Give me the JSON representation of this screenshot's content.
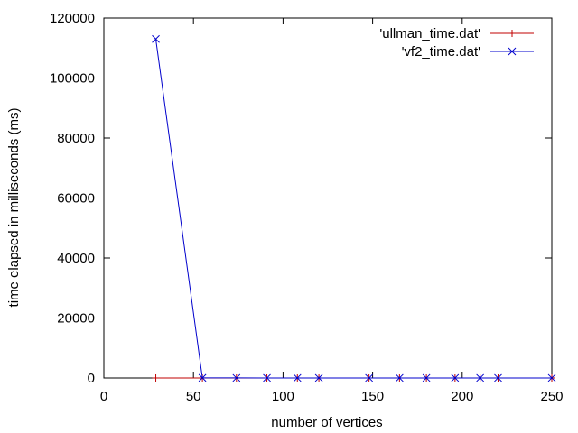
{
  "chart_data": {
    "type": "line",
    "xlabel": "number of vertices",
    "ylabel": "time elapsed in milliseconds (ms)",
    "xlim": [
      0,
      250
    ],
    "ylim": [
      0,
      120000
    ],
    "x_ticks": [
      0,
      50,
      100,
      150,
      200,
      250
    ],
    "y_ticks": [
      0,
      20000,
      40000,
      60000,
      80000,
      100000,
      120000
    ],
    "x_tick_labels": [
      "0",
      "50",
      "100",
      "150",
      "200",
      "250"
    ],
    "y_tick_labels": [
      "0",
      "20000",
      "40000",
      "60000",
      "80000",
      "100000",
      "120000"
    ],
    "grid": false,
    "legend_position": "top-right",
    "series": [
      {
        "name": "'ullman_time.dat'",
        "color": "#c00000",
        "marker": "plus",
        "x": [
          29,
          55,
          74,
          91,
          108,
          120,
          148,
          165,
          180,
          196,
          210,
          220,
          250
        ],
        "y": [
          5,
          5,
          5,
          5,
          5,
          5,
          5,
          5,
          5,
          5,
          5,
          5,
          5
        ]
      },
      {
        "name": "'vf2_time.dat'",
        "color": "#0000cc",
        "marker": "cross",
        "x": [
          29,
          55,
          74,
          91,
          108,
          120,
          148,
          165,
          180,
          196,
          210,
          220,
          250
        ],
        "y": [
          113000,
          30,
          20,
          15,
          15,
          15,
          15,
          15,
          15,
          15,
          15,
          15,
          15
        ]
      }
    ]
  }
}
